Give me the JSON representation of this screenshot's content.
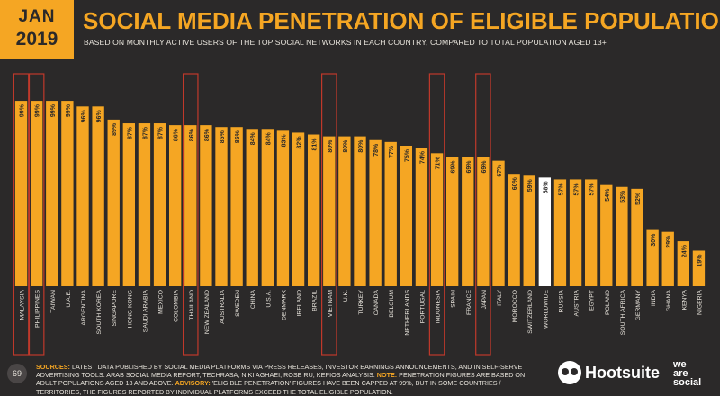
{
  "header": {
    "month": "JAN",
    "year": "2019",
    "title": "SOCIAL MEDIA PENETRATION OF ELIGIBLE POPULATION",
    "subtitle": "BASED ON MONTHLY ACTIVE USERS OF THE TOP SOCIAL NETWORKS IN EACH COUNTRY, COMPARED TO TOTAL POPULATION AGED 13+"
  },
  "footer": {
    "page_number": "69",
    "sources_label": "SOURCES:",
    "sources_text": "LATEST DATA PUBLISHED BY SOCIAL MEDIA PLATFORMS VIA PRESS RELEASES, INVESTOR EARNINGS ANNOUNCEMENTS, AND IN SELF-SERVE ADVERTISING TOOLS. ARAB SOCIAL MEDIA REPORT; TECHRASA; NIKI AGHAEI; ROSE RU; KEPIOS ANALYSIS.",
    "note_label": "NOTE:",
    "note_text": "PENETRATION FIGURES ARE BASED ON ADULT POPULATIONS AGED 13 AND ABOVE.",
    "advisory_label": "ADVISORY:",
    "advisory_text": "'ELIGIBLE PENETRATION' FIGURES HAVE BEEN CAPPED AT 99%, BUT IN SOME COUNTRIES / TERRITORIES, THE FIGURES REPORTED BY INDIVIDUAL PLATFORMS EXCEED THE TOTAL ELIGIBLE POPULATION."
  },
  "brand": {
    "name": "Hootsuite",
    "partner_line1": "we",
    "partner_line2": "are",
    "partner_line3": "social"
  },
  "colors": {
    "background": "#2b2929",
    "bar": "#f5a623",
    "highlight_bar": "#ffffff",
    "highlight_frame": "#c0392b",
    "text": "#e8e4dc"
  },
  "chart_data": {
    "type": "bar",
    "categories": [
      "MALAYSIA",
      "PHILIPPINES",
      "TAIWAN",
      "U.A.E.",
      "ARGENTINA",
      "SOUTH KOREA",
      "SINGAPORE",
      "HONG KONG",
      "SAUDI ARABIA",
      "MEXICO",
      "COLOMBIA",
      "THAILAND",
      "NEW ZEALAND",
      "AUSTRALIA",
      "SWEDEN",
      "CHINA",
      "U.S.A.",
      "DENMARK",
      "IRELAND",
      "BRAZIL",
      "VIETNAM",
      "U.K.",
      "TURKEY",
      "CANADA",
      "BELGIUM",
      "NETHERLANDS",
      "PORTUGAL",
      "INDONESIA",
      "SPAIN",
      "FRANCE",
      "JAPAN",
      "ITALY",
      "MOROCCO",
      "SWITZERLAND",
      "WORLDWIDE",
      "RUSSIA",
      "AUSTRIA",
      "EGYPT",
      "POLAND",
      "SOUTH AFRICA",
      "GERMANY",
      "INDIA",
      "GHANA",
      "KENYA",
      "NIGERIA"
    ],
    "values": [
      99,
      99,
      99,
      99,
      96,
      96,
      89,
      87,
      87,
      87,
      86,
      86,
      86,
      85,
      85,
      84,
      84,
      83,
      82,
      81,
      80,
      80,
      80,
      78,
      77,
      75,
      74,
      71,
      69,
      69,
      69,
      67,
      60,
      59,
      58,
      57,
      57,
      57,
      54,
      53,
      52,
      30,
      29,
      24,
      19
    ],
    "data_labels": [
      "99%",
      "99%",
      "99%",
      "99%",
      "96%",
      "96%",
      "89%",
      "87%",
      "87%",
      "87%",
      "86%",
      "86%",
      "86%",
      "85%",
      "85%",
      "84%",
      "84%",
      "83%",
      "82%",
      "81%",
      "80%",
      "80%",
      "80%",
      "78%",
      "77%",
      "75%",
      "74%",
      "71%",
      "69%",
      "69%",
      "69%",
      "67%",
      "60%",
      "59%",
      "58%",
      "57%",
      "57%",
      "57%",
      "54%",
      "53%",
      "52%",
      "30%",
      "29%",
      "24%",
      "19%"
    ],
    "highlighted": [
      "MALAYSIA",
      "PHILIPPINES",
      "THAILAND",
      "VIETNAM",
      "INDONESIA",
      "JAPAN"
    ],
    "reference_bar": "WORLDWIDE",
    "ylim": [
      0,
      100
    ],
    "grid": false,
    "legend": "none"
  }
}
